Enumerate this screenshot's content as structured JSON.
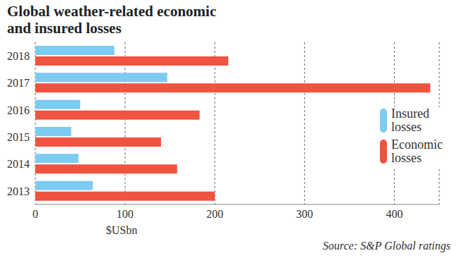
{
  "chart_data": {
    "type": "bar",
    "orientation": "horizontal",
    "title": "Global weather-related economic and insured losses",
    "x_label": "$USbn",
    "source": "Source: S&P Global ratings",
    "categories": [
      "2018",
      "2017",
      "2016",
      "2015",
      "2014",
      "2013"
    ],
    "series": [
      {
        "name": "Insured losses",
        "color": "#7ccbf0",
        "values": [
          88,
          147,
          50,
          40,
          48,
          64
        ]
      },
      {
        "name": "Economic losses",
        "color": "#f0533f",
        "values": [
          215,
          440,
          183,
          140,
          158,
          200
        ]
      }
    ],
    "xlim": [
      0,
      450
    ],
    "xticks": [
      0,
      100,
      200,
      300,
      400
    ],
    "grid": true,
    "legend": "right"
  }
}
